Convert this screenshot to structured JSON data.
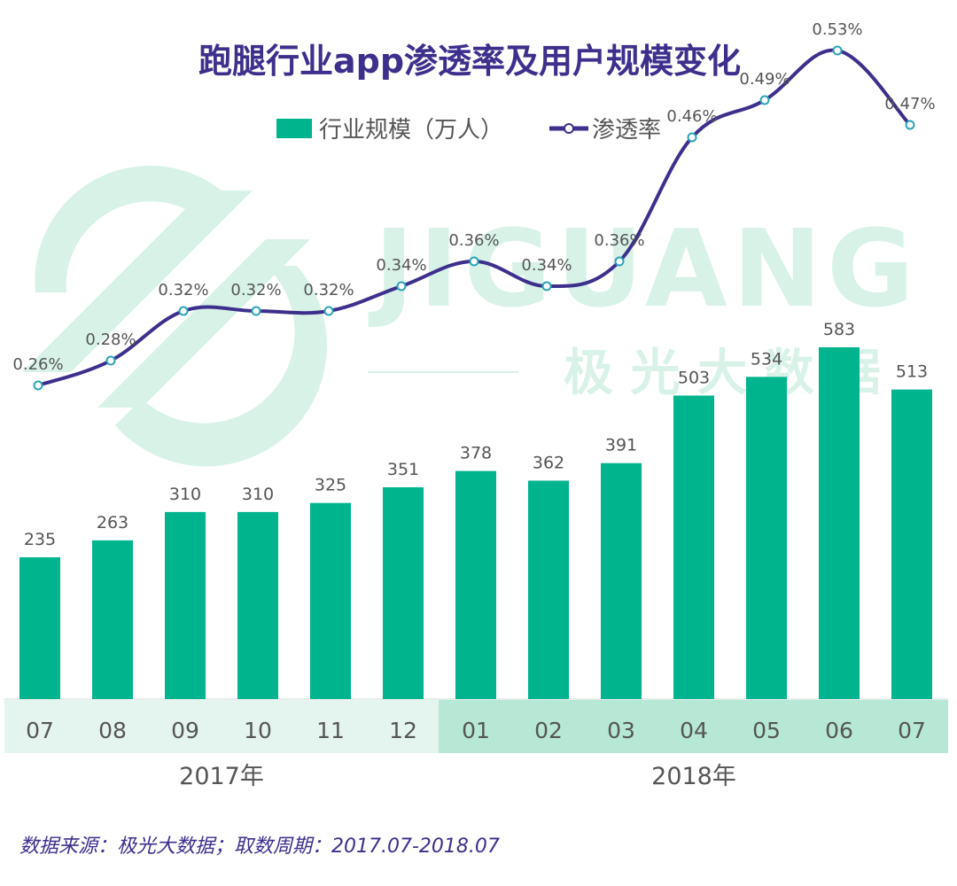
{
  "chart_data": {
    "type": "bar",
    "title": "跑腿行业app渗透率及用户规模变化",
    "categories": [
      "07",
      "08",
      "09",
      "10",
      "11",
      "12",
      "01",
      "02",
      "03",
      "04",
      "05",
      "06",
      "07"
    ],
    "year_groups": [
      {
        "label": "2017年",
        "start": 0,
        "end": 5
      },
      {
        "label": "2018年",
        "start": 6,
        "end": 12
      }
    ],
    "series": [
      {
        "name": "行业规模（万人）",
        "type": "bar",
        "color": "#00b48e",
        "values": [
          235,
          263,
          310,
          310,
          325,
          351,
          378,
          362,
          391,
          503,
          534,
          583,
          513
        ],
        "labels": [
          "235",
          "263",
          "310",
          "310",
          "325",
          "351",
          "378",
          "362",
          "391",
          "503",
          "534",
          "583",
          "513"
        ]
      },
      {
        "name": "渗透率",
        "type": "line",
        "color": "#3d2f8c",
        "values": [
          0.26,
          0.28,
          0.32,
          0.32,
          0.32,
          0.34,
          0.36,
          0.34,
          0.36,
          0.46,
          0.49,
          0.53,
          0.47
        ],
        "labels": [
          "0.26%",
          "0.28%",
          "0.32%",
          "0.32%",
          "0.32%",
          "0.34%",
          "0.36%",
          "0.34%",
          "0.36%",
          "0.46%",
          "0.49%",
          "0.53%",
          "0.47%"
        ]
      }
    ],
    "legend_position": "top-center",
    "grid": false
  },
  "watermark": {
    "brand": "JIGUANG",
    "sub": "极 光 大 数 据"
  },
  "source_note": "数据来源：极光大数据；取数周期：2017.07-2018.07",
  "colors": {
    "title": "#3d2f8c",
    "bar": "#00b48e",
    "line": "#3d2f8c",
    "axis_band_2017": "#e3f5ee",
    "axis_band_2018": "#b6e8d5",
    "watermark": "#d8f2e8"
  }
}
